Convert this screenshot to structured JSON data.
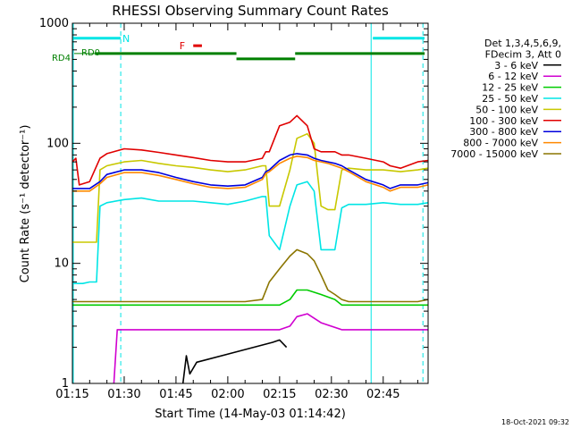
{
  "chart_data": {
    "type": "line",
    "title": "RHESSI Observing Summary Count Rates",
    "xlabel": "Start Time (14-May-03 01:14:42)",
    "ylabel": "Count Rate (s⁻¹ detector⁻¹)",
    "y_scale": "log",
    "ylim": [
      1,
      1000
    ],
    "xlim_minutes_after_0115": [
      0,
      103
    ],
    "x_ticks": [
      "01:15",
      "01:30",
      "01:45",
      "02:00",
      "02:15",
      "02:30",
      "02:45"
    ],
    "y_ticks": [
      "1",
      "10",
      "100",
      "1000"
    ],
    "legend_header": [
      "Det 1,3,4,5,6,9,",
      "FDecim 3, Att 0"
    ],
    "timestamp": "18-Oct-2021 09:32",
    "flags": {
      "night_label": "N",
      "flare_label": "F",
      "rd_labels": [
        "RD0",
        "RD4"
      ]
    },
    "series": [
      {
        "name": "3 - 6 keV",
        "color": "#000000",
        "x": [
          32,
          33,
          34,
          36,
          58,
          60,
          62
        ],
        "values": [
          1.0,
          1.7,
          1.2,
          1.5,
          2.2,
          2.3,
          2.0
        ]
      },
      {
        "name": "6 - 12 keV",
        "color": "#d000d0",
        "x": [
          12,
          13,
          20,
          30,
          40,
          50,
          56,
          60,
          63,
          65,
          68,
          72,
          78,
          86,
          95,
          100,
          103
        ],
        "values": [
          1.0,
          2.8,
          2.8,
          2.8,
          2.8,
          2.8,
          2.8,
          2.8,
          3.0,
          3.6,
          3.8,
          3.2,
          2.8,
          2.8,
          2.8,
          2.8,
          2.8
        ]
      },
      {
        "name": "12 - 25 keV",
        "color": "#00cc00",
        "x": [
          0,
          5,
          7,
          10,
          20,
          30,
          40,
          50,
          56,
          60,
          63,
          65,
          68,
          72,
          76,
          78,
          86,
          95,
          100,
          103
        ],
        "values": [
          4.5,
          4.5,
          4.5,
          4.5,
          4.5,
          4.5,
          4.5,
          4.5,
          4.5,
          4.5,
          5.0,
          6.0,
          6.0,
          5.5,
          5.0,
          4.5,
          4.5,
          4.5,
          4.5,
          4.5
        ]
      },
      {
        "name": "25 - 50 keV",
        "color": "#00e5e5",
        "x": [
          0,
          3,
          5,
          7,
          8,
          10,
          15,
          20,
          25,
          30,
          35,
          40,
          45,
          50,
          55,
          56,
          57,
          60,
          63,
          65,
          68,
          70,
          72,
          74,
          75,
          76,
          78,
          80,
          85,
          90,
          95,
          100,
          103
        ],
        "values": [
          6.8,
          6.8,
          7.0,
          7.0,
          30,
          32,
          34,
          35,
          33,
          33,
          33,
          32,
          31,
          33,
          36,
          36,
          17,
          13,
          30,
          45,
          48,
          40,
          13,
          13,
          13,
          13,
          29,
          31,
          31,
          32,
          31,
          31,
          32
        ]
      },
      {
        "name": "50 - 100 keV",
        "color": "#c8c800",
        "x": [
          0,
          2,
          3,
          5,
          7,
          8,
          10,
          15,
          20,
          25,
          30,
          35,
          40,
          45,
          50,
          55,
          56,
          57,
          60,
          63,
          65,
          68,
          70,
          72,
          74,
          75,
          76,
          78,
          80,
          85,
          90,
          95,
          100,
          103
        ],
        "values": [
          15,
          15,
          15,
          15,
          15,
          60,
          65,
          70,
          72,
          68,
          65,
          63,
          60,
          58,
          60,
          65,
          65,
          30,
          30,
          60,
          110,
          120,
          100,
          30,
          28,
          28,
          28,
          60,
          62,
          60,
          60,
          58,
          60,
          62
        ]
      },
      {
        "name": "100 - 300 keV",
        "color": "#e00000",
        "x": [
          0,
          1,
          2,
          5,
          8,
          10,
          15,
          20,
          25,
          30,
          35,
          40,
          45,
          50,
          55,
          56,
          57,
          60,
          63,
          65,
          68,
          70,
          72,
          74,
          76,
          78,
          80,
          85,
          90,
          92,
          95,
          100,
          103
        ],
        "values": [
          70,
          75,
          45,
          48,
          75,
          82,
          90,
          88,
          84,
          80,
          76,
          72,
          70,
          70,
          75,
          85,
          85,
          140,
          150,
          170,
          140,
          90,
          85,
          85,
          85,
          80,
          80,
          75,
          70,
          65,
          62,
          70,
          72
        ]
      },
      {
        "name": "300 - 800 keV",
        "color": "#0000dd",
        "x": [
          0,
          2,
          5,
          8,
          10,
          15,
          20,
          25,
          30,
          35,
          40,
          45,
          50,
          55,
          56,
          57,
          60,
          63,
          65,
          68,
          70,
          72,
          74,
          76,
          78,
          80,
          85,
          90,
          92,
          95,
          100,
          103
        ],
        "values": [
          42,
          42,
          42,
          48,
          55,
          60,
          60,
          57,
          52,
          48,
          45,
          44,
          45,
          52,
          58,
          60,
          72,
          80,
          82,
          80,
          75,
          72,
          70,
          68,
          65,
          60,
          50,
          45,
          42,
          45,
          45,
          47
        ]
      },
      {
        "name": "800 - 7000 keV",
        "color": "#ff8800",
        "x": [
          0,
          2,
          5,
          8,
          10,
          15,
          20,
          25,
          30,
          35,
          40,
          45,
          50,
          55,
          56,
          57,
          60,
          63,
          65,
          68,
          70,
          72,
          74,
          76,
          78,
          80,
          85,
          90,
          92,
          95,
          100,
          103
        ],
        "values": [
          40,
          40,
          40,
          46,
          52,
          57,
          57,
          54,
          50,
          46,
          43,
          42,
          43,
          50,
          56,
          58,
          68,
          75,
          78,
          76,
          72,
          70,
          68,
          65,
          62,
          58,
          48,
          43,
          40,
          43,
          43,
          45
        ]
      },
      {
        "name": "7000 - 15000 keV",
        "color": "#8b7500",
        "x": [
          0,
          5,
          10,
          20,
          30,
          40,
          50,
          55,
          57,
          60,
          63,
          65,
          68,
          70,
          72,
          74,
          76,
          78,
          80,
          85,
          90,
          95,
          100,
          103
        ],
        "values": [
          4.8,
          4.8,
          4.8,
          4.8,
          4.8,
          4.8,
          4.8,
          5.0,
          7.0,
          9.0,
          11.5,
          13.0,
          12.0,
          10.5,
          8.0,
          6.0,
          5.5,
          5.0,
          4.8,
          4.8,
          4.8,
          4.8,
          4.8,
          5.0
        ]
      }
    ]
  }
}
